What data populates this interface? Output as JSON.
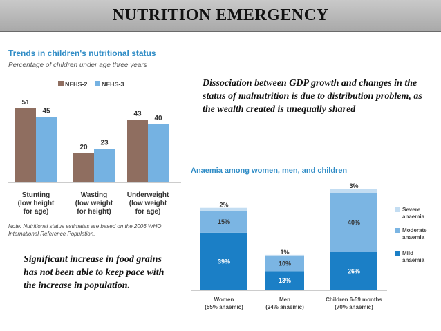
{
  "slide": {
    "title": "NUTRITION EMERGENCY",
    "note_right": "Dissociation between GDP growth and changes in the status of malnutrition is due to distribution problem, as the wealth created is unequally shared",
    "note_left": " Significant increase in food grains has not been able to keep pace with the increase in population."
  },
  "chart_data": [
    {
      "type": "bar",
      "title": "Trends in children's nutritional status",
      "subtitle": "Percentage of children under age three years",
      "categories": [
        [
          "Stunting",
          "(low height",
          "for age)"
        ],
        [
          "Wasting",
          "(low weight",
          "for height)"
        ],
        [
          "Underweight",
          "(low weight",
          "for age)"
        ]
      ],
      "series": [
        {
          "name": "NFHS-2",
          "color": "#8f6e60",
          "values": [
            51,
            20,
            43
          ]
        },
        {
          "name": "NFHS-3",
          "color": "#75b2e2",
          "values": [
            45,
            23,
            40
          ]
        }
      ],
      "ylim": [
        0,
        60
      ],
      "legend": "top",
      "note": "Note: Nutritional status estimates are based on the 2006 WHO International Reference Population."
    },
    {
      "type": "stacked-bar",
      "title": "Anaemia among women, men, and children",
      "categories": [
        [
          "Women",
          "(55% anaemic)"
        ],
        [
          "Men",
          "(24% anaemic)"
        ],
        [
          "Children 6-59 months",
          "(70% anaemic)"
        ]
      ],
      "series": [
        {
          "name": "Mild anaemia",
          "color": "#1b7fc6",
          "values": [
            39,
            13,
            26
          ]
        },
        {
          "name": "Moderate anaemia",
          "color": "#7bb5e3",
          "values": [
            15,
            10,
            40
          ]
        },
        {
          "name": "Severe anaemia",
          "color": "#c3ddf2",
          "values": [
            2,
            1,
            3
          ]
        }
      ],
      "ylim": [
        0,
        70
      ],
      "legend": "right"
    }
  ]
}
